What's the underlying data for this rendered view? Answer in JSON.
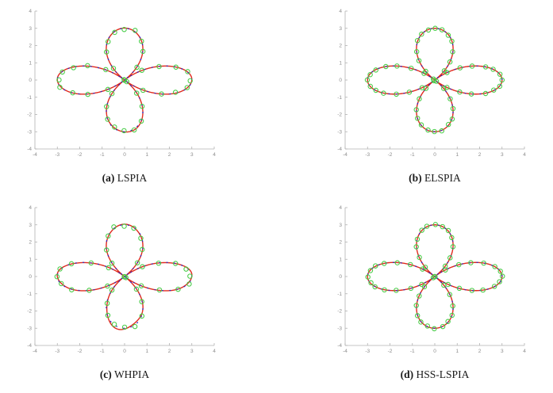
{
  "figure": {
    "background": "#ffffff",
    "panels": [
      {
        "id": "a",
        "caption_marker": "(a)",
        "caption_label": "LSPIA"
      },
      {
        "id": "b",
        "caption_marker": "(b)",
        "caption_label": "ELSPIA"
      },
      {
        "id": "c",
        "caption_marker": "(c)",
        "caption_label": "WHPIA"
      },
      {
        "id": "d",
        "caption_marker": "(d)",
        "caption_label": "HSS-LSPIA"
      }
    ]
  },
  "chart_data": [
    {
      "type": "line",
      "subtype": "parametric-rose-curve-fit",
      "caption": "(a) LSPIA",
      "equation": "r = 3*cos(2*theta)",
      "amplitude": 3,
      "petal_frequency": 2,
      "theta_range_rad": [
        0,
        6.2832
      ],
      "xlim": [
        -4,
        4
      ],
      "ylim": [
        -4,
        4
      ],
      "x_ticks": [
        -4,
        -3,
        -2,
        -1,
        0,
        1,
        2,
        3,
        4
      ],
      "y_ticks": [
        -4,
        -3,
        -2,
        -1,
        0,
        1,
        2,
        3,
        4
      ],
      "grid": false,
      "legend": null,
      "axis_color": "#b2b2b2",
      "tick_label_color": "#8c8c8c",
      "series": [
        {
          "name": "fitted-curve",
          "style": "solid",
          "color": "#e02a1e",
          "wobble_amp": 0.02,
          "wobble_freq": 7,
          "wobble_phase": 2.0,
          "wobble_global": 0.005
        },
        {
          "name": "original-curve",
          "style": "dashed",
          "color": "#2828c8"
        },
        {
          "name": "data-points",
          "style": "circle-markers",
          "color": "#46cc46",
          "count": 40,
          "noise_amp": 0.08,
          "noise_seed": 7
        }
      ]
    },
    {
      "type": "line",
      "subtype": "parametric-rose-curve-fit",
      "caption": "(b) ELSPIA",
      "equation": "r = 3*cos(2*theta)",
      "amplitude": 3,
      "petal_frequency": 2,
      "theta_range_rad": [
        0,
        6.2832
      ],
      "xlim": [
        -4,
        4
      ],
      "ylim": [
        -4,
        4
      ],
      "x_ticks": [
        -4,
        -3,
        -2,
        -1,
        0,
        1,
        2,
        3,
        4
      ],
      "y_ticks": [
        -4,
        -3,
        -2,
        -1,
        0,
        1,
        2,
        3,
        4
      ],
      "grid": false,
      "legend": null,
      "axis_color": "#b2b2b2",
      "tick_label_color": "#8c8c8c",
      "series": [
        {
          "name": "fitted-curve",
          "style": "solid",
          "color": "#e02a1e",
          "wobble_amp": 0,
          "wobble_freq": 0,
          "wobble_phase": 0,
          "wobble_global": 0
        },
        {
          "name": "original-curve",
          "style": "dashed",
          "color": "#2828c8"
        },
        {
          "name": "data-points",
          "style": "circle-markers",
          "color": "#46cc46",
          "count": 56,
          "noise_amp": 0.035,
          "noise_seed": 11
        }
      ]
    },
    {
      "type": "line",
      "subtype": "parametric-rose-curve-fit",
      "caption": "(c) WHPIA",
      "equation": "r = 3*cos(2*theta)",
      "amplitude": 3,
      "petal_frequency": 2,
      "theta_range_rad": [
        0,
        6.2832
      ],
      "xlim": [
        -4,
        4
      ],
      "ylim": [
        -4,
        4
      ],
      "x_ticks": [
        -4,
        -3,
        -2,
        -1,
        0,
        1,
        2,
        3,
        4
      ],
      "y_ticks": [
        -4,
        -3,
        -2,
        -1,
        0,
        1,
        2,
        3,
        4
      ],
      "grid": false,
      "legend": null,
      "axis_color": "#b2b2b2",
      "tick_label_color": "#8c8c8c",
      "series": [
        {
          "name": "fitted-curve",
          "style": "solid",
          "color": "#e02a1e",
          "wobble_amp": 0.05,
          "wobble_freq": 9,
          "wobble_phase": 1.0,
          "wobble_global": 0.012
        },
        {
          "name": "original-curve",
          "style": "dashed",
          "color": "#2828c8"
        },
        {
          "name": "data-points",
          "style": "circle-markers",
          "color": "#46cc46",
          "count": 40,
          "noise_amp": 0.09,
          "noise_seed": 3
        }
      ]
    },
    {
      "type": "line",
      "subtype": "parametric-rose-curve-fit",
      "caption": "(d) HSS-LSPIA",
      "equation": "r = 3*cos(2*theta)",
      "amplitude": 3,
      "petal_frequency": 2,
      "theta_range_rad": [
        0,
        6.2832
      ],
      "xlim": [
        -4,
        4
      ],
      "ylim": [
        -4,
        4
      ],
      "x_ticks": [
        -4,
        -3,
        -2,
        -1,
        0,
        1,
        2,
        3,
        4
      ],
      "y_ticks": [
        -4,
        -3,
        -2,
        -1,
        0,
        1,
        2,
        3,
        4
      ],
      "grid": false,
      "legend": null,
      "axis_color": "#b2b2b2",
      "tick_label_color": "#8c8c8c",
      "series": [
        {
          "name": "fitted-curve",
          "style": "solid",
          "color": "#e02a1e",
          "wobble_amp": 0,
          "wobble_freq": 0,
          "wobble_phase": 0,
          "wobble_global": 0
        },
        {
          "name": "original-curve",
          "style": "dashed",
          "color": "#2828c8"
        },
        {
          "name": "data-points",
          "style": "circle-markers",
          "color": "#46cc46",
          "count": 56,
          "noise_amp": 0.035,
          "noise_seed": 5
        }
      ]
    }
  ]
}
